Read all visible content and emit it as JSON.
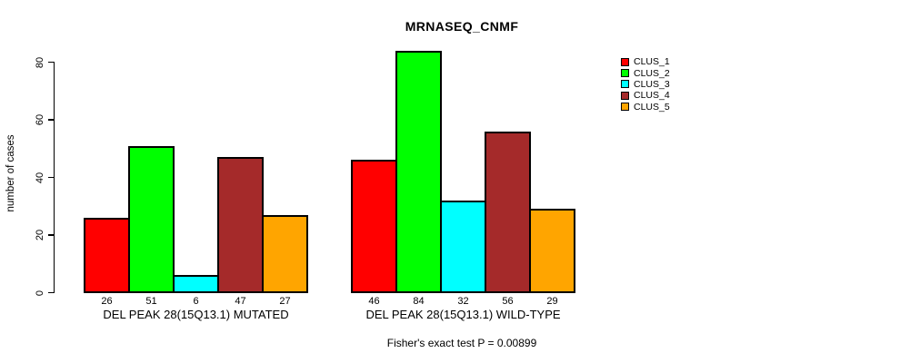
{
  "chart_data": {
    "type": "bar",
    "title": "MRNASEQ_CNMF",
    "ylabel": "number of cases",
    "xlabel": "",
    "ylim": [
      0,
      80
    ],
    "yticks": [
      0,
      20,
      40,
      60,
      80
    ],
    "grid": false,
    "legend_position": "right-outside",
    "bar_value_labels_shown": true,
    "categories": [
      "DEL PEAK 28(15Q13.1) MUTATED",
      "DEL PEAK 28(15Q13.1) WILD-TYPE"
    ],
    "series": [
      {
        "name": "CLUS_1",
        "color": "#FF0000",
        "values": [
          26,
          46
        ]
      },
      {
        "name": "CLUS_2",
        "color": "#00FF00",
        "values": [
          51,
          84
        ]
      },
      {
        "name": "CLUS_3",
        "color": "#00FFFF",
        "values": [
          6,
          32
        ]
      },
      {
        "name": "CLUS_4",
        "color": "#A52A2A",
        "values": [
          47,
          56
        ]
      },
      {
        "name": "CLUS_5",
        "color": "#FFA500",
        "values": [
          27,
          29
        ]
      }
    ],
    "annotation": "Fisher's exact test P = 0.00899"
  }
}
